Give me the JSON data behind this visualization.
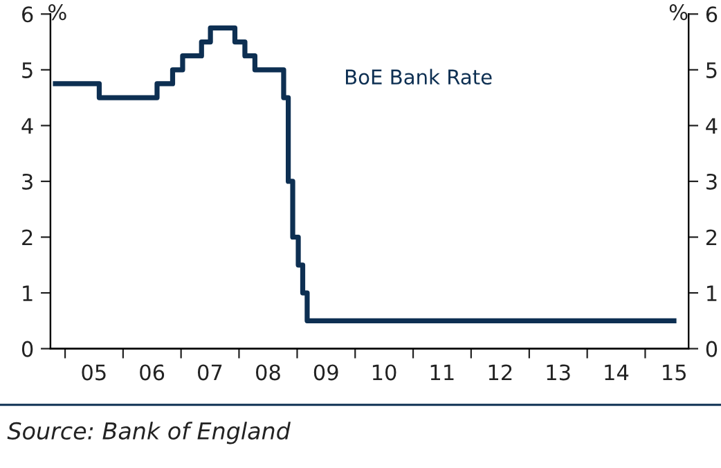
{
  "chart_data": {
    "type": "step",
    "ylabel": "%",
    "y2label": "%",
    "x": [
      "2004-11-01",
      "2005-08-04",
      "2006-08-03",
      "2006-11-09",
      "2007-01-11",
      "2007-05-10",
      "2007-07-05",
      "2007-12-06",
      "2008-02-07",
      "2008-04-10",
      "2008-10-08",
      "2008-11-06",
      "2008-12-04",
      "2009-01-08",
      "2009-02-05",
      "2009-03-05",
      "2015-07-01"
    ],
    "series": [
      {
        "name": "BoE Bank Rate",
        "color": "#0d2f52",
        "values": [
          4.75,
          4.5,
          4.75,
          5.0,
          5.25,
          5.5,
          5.75,
          5.5,
          5.25,
          5.0,
          4.5,
          3.0,
          2.0,
          1.5,
          1.0,
          0.5,
          0.5
        ]
      }
    ],
    "xlim": [
      "2004-10-01",
      "2015-10-01"
    ],
    "xticks": [
      {
        "value": "2005-01-01",
        "label": null
      },
      {
        "value": "2005-07-02",
        "label": "05"
      },
      {
        "value": "2006-01-01",
        "label": null
      },
      {
        "value": "2006-07-02",
        "label": "06"
      },
      {
        "value": "2007-01-01",
        "label": null
      },
      {
        "value": "2007-07-02",
        "label": "07"
      },
      {
        "value": "2008-01-01",
        "label": null
      },
      {
        "value": "2008-07-02",
        "label": "08"
      },
      {
        "value": "2009-01-01",
        "label": null
      },
      {
        "value": "2009-07-02",
        "label": "09"
      },
      {
        "value": "2010-01-01",
        "label": null
      },
      {
        "value": "2010-07-02",
        "label": "10"
      },
      {
        "value": "2011-01-01",
        "label": null
      },
      {
        "value": "2011-07-02",
        "label": "11"
      },
      {
        "value": "2012-01-01",
        "label": null
      },
      {
        "value": "2012-07-02",
        "label": "12"
      },
      {
        "value": "2013-01-01",
        "label": null
      },
      {
        "value": "2013-07-02",
        "label": "13"
      },
      {
        "value": "2014-01-01",
        "label": null
      },
      {
        "value": "2014-07-02",
        "label": "14"
      },
      {
        "value": "2015-01-01",
        "label": null
      },
      {
        "value": "2015-07-02",
        "label": "15"
      }
    ],
    "ylim": [
      0,
      6
    ],
    "yticks": [
      0,
      1,
      2,
      3,
      4,
      5,
      6
    ],
    "y2lim": [
      0,
      6
    ],
    "y2ticks": [
      0,
      1,
      2,
      3,
      4,
      5,
      6
    ],
    "grid": false,
    "legend": false,
    "annotations": [
      "Source: Bank of England"
    ]
  }
}
